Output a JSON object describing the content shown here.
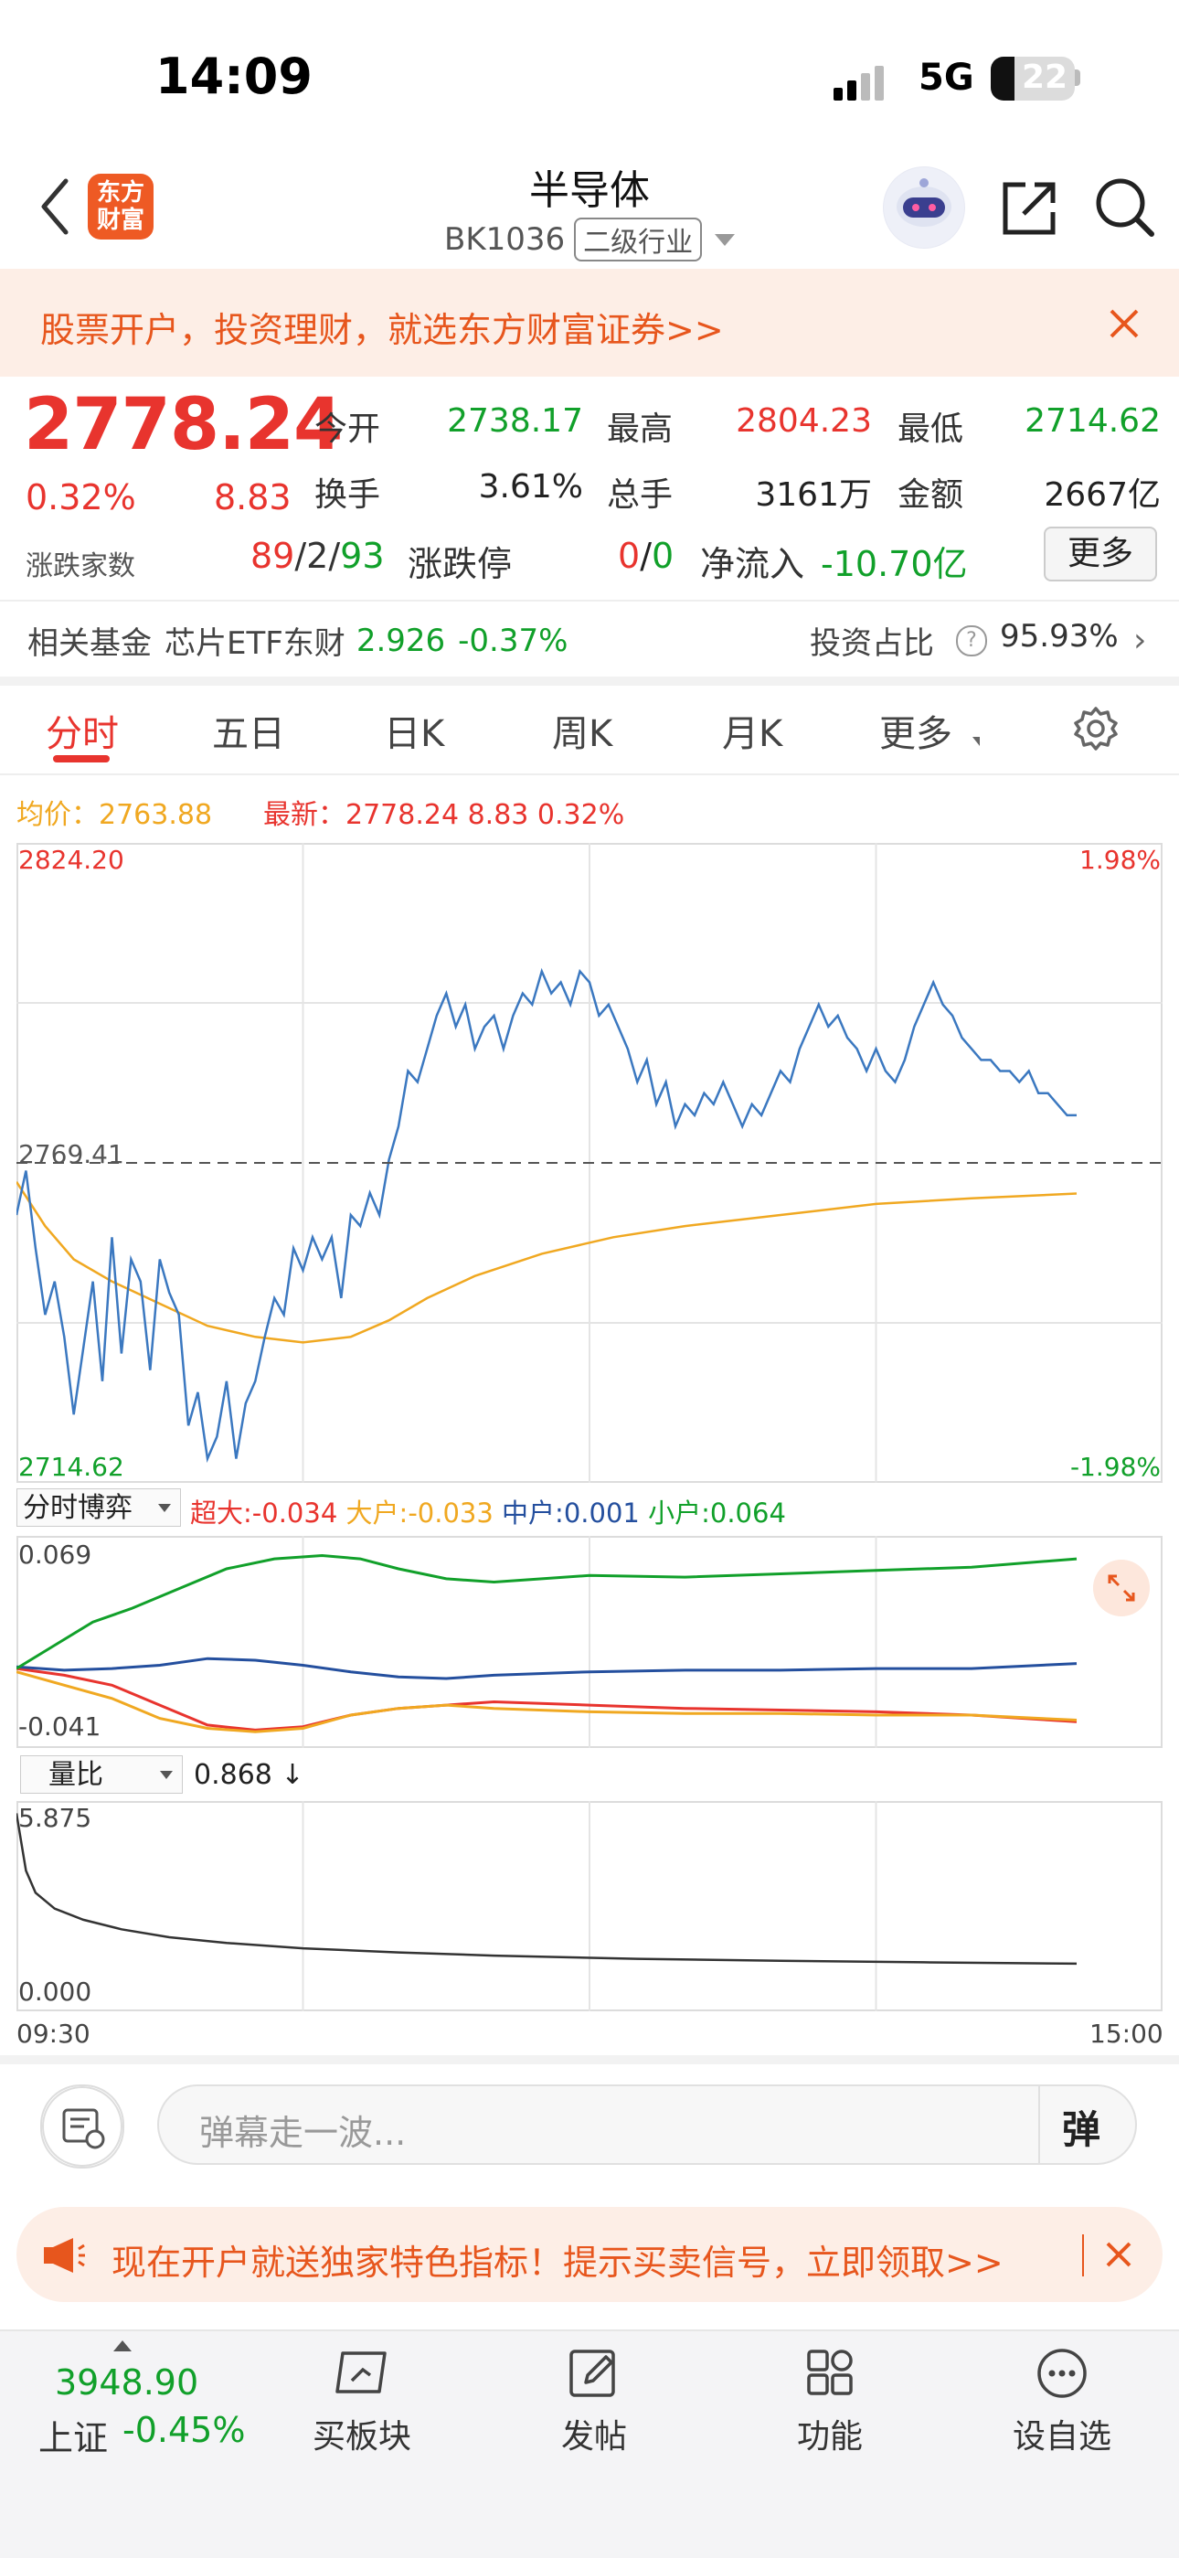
{
  "status": {
    "time": "14:09",
    "network": "5G",
    "battery": "22"
  },
  "header": {
    "logo_text": "东方财富",
    "title": "半导体",
    "code": "BK1036",
    "tag": "二级行业"
  },
  "promo": {
    "text": "股票开户，投资理财，就选东方财富证券>>"
  },
  "quote": {
    "price": "2778.24",
    "change_pct": "0.32%",
    "change_val": "8.83",
    "open_label": "今开",
    "open": "2738.17",
    "high_label": "最高",
    "high": "2804.23",
    "low_label": "最低",
    "low": "2714.62",
    "turnover_label": "换手",
    "turnover": "3.61%",
    "volume_label": "总手",
    "volume": "3161万",
    "amount_label": "金额",
    "amount": "2667亿",
    "updown_label": "涨跌家数",
    "up_count": "89",
    "flat_count": "2",
    "down_count": "93",
    "limit_label": "涨跌停",
    "limit_up": "0",
    "limit_down": "0",
    "inflow_label": "净流入",
    "inflow": "-10.70亿",
    "more_label": "更多"
  },
  "fund": {
    "label": "相关基金",
    "name": "芯片ETF东财",
    "value": "2.926",
    "change": "-0.37%",
    "invest_label": "投资占比",
    "invest_value": "95.93%"
  },
  "tabs": [
    "分时",
    "五日",
    "日K",
    "周K",
    "月K",
    "更多"
  ],
  "chart_info": {
    "avg_label": "均价：2763.88",
    "latest_label": "最新：2778.24  8.83  0.32%"
  },
  "chart_data": [
    {
      "type": "line",
      "title": "",
      "series": [],
      "ylim": [
        2714.62,
        2824.2
      ],
      "y_tick_labels": [
        "2824.20",
        "2769.41",
        "2714.62"
      ],
      "y_right_labels": [
        "1.98%",
        "-1.98%"
      ],
      "reference_line": 2769.41,
      "x_range": [
        "09:30",
        "15:00"
      ],
      "price_points": [
        [
          0,
          2760
        ],
        [
          2,
          2768
        ],
        [
          4,
          2754
        ],
        [
          6,
          2742
        ],
        [
          8,
          2748
        ],
        [
          10,
          2738
        ],
        [
          12,
          2724
        ],
        [
          14,
          2736
        ],
        [
          16,
          2748
        ],
        [
          18,
          2730
        ],
        [
          20,
          2756
        ],
        [
          22,
          2735
        ],
        [
          24,
          2752
        ],
        [
          26,
          2748
        ],
        [
          28,
          2732
        ],
        [
          30,
          2752
        ],
        [
          32,
          2746
        ],
        [
          34,
          2742
        ],
        [
          36,
          2722
        ],
        [
          38,
          2728
        ],
        [
          40,
          2716
        ],
        [
          42,
          2720
        ],
        [
          44,
          2730
        ],
        [
          46,
          2716
        ],
        [
          48,
          2726
        ],
        [
          50,
          2730
        ],
        [
          52,
          2738
        ],
        [
          54,
          2745
        ],
        [
          56,
          2742
        ],
        [
          58,
          2754
        ],
        [
          60,
          2750
        ],
        [
          62,
          2756
        ],
        [
          64,
          2752
        ],
        [
          66,
          2756
        ],
        [
          68,
          2745
        ],
        [
          70,
          2760
        ],
        [
          72,
          2758
        ],
        [
          74,
          2764
        ],
        [
          76,
          2760
        ],
        [
          78,
          2770
        ],
        [
          80,
          2776
        ],
        [
          82,
          2786
        ],
        [
          84,
          2784
        ],
        [
          86,
          2790
        ],
        [
          88,
          2796
        ],
        [
          90,
          2800
        ],
        [
          92,
          2794
        ],
        [
          94,
          2798
        ],
        [
          96,
          2790
        ],
        [
          98,
          2794
        ],
        [
          100,
          2796
        ],
        [
          102,
          2790
        ],
        [
          104,
          2796
        ],
        [
          106,
          2800
        ],
        [
          108,
          2798
        ],
        [
          110,
          2804
        ],
        [
          112,
          2800
        ],
        [
          114,
          2802
        ],
        [
          116,
          2798
        ],
        [
          118,
          2804
        ],
        [
          120,
          2802
        ],
        [
          122,
          2796
        ],
        [
          124,
          2798
        ],
        [
          126,
          2794
        ],
        [
          128,
          2790
        ],
        [
          130,
          2784
        ],
        [
          132,
          2788
        ],
        [
          134,
          2780
        ],
        [
          136,
          2784
        ],
        [
          138,
          2776
        ],
        [
          140,
          2780
        ],
        [
          142,
          2778
        ],
        [
          144,
          2782
        ],
        [
          146,
          2780
        ],
        [
          148,
          2784
        ],
        [
          150,
          2780
        ],
        [
          152,
          2776
        ],
        [
          154,
          2780
        ],
        [
          156,
          2778
        ],
        [
          158,
          2782
        ],
        [
          160,
          2786
        ],
        [
          162,
          2784
        ],
        [
          164,
          2790
        ],
        [
          166,
          2794
        ],
        [
          168,
          2798
        ],
        [
          170,
          2794
        ],
        [
          172,
          2796
        ],
        [
          174,
          2792
        ],
        [
          176,
          2790
        ],
        [
          178,
          2786
        ],
        [
          180,
          2790
        ],
        [
          182,
          2786
        ],
        [
          184,
          2784
        ],
        [
          186,
          2788
        ],
        [
          188,
          2794
        ],
        [
          190,
          2798
        ],
        [
          192,
          2802
        ],
        [
          194,
          2798
        ],
        [
          196,
          2796
        ],
        [
          198,
          2792
        ],
        [
          200,
          2790
        ],
        [
          202,
          2788
        ],
        [
          204,
          2788
        ],
        [
          206,
          2786
        ],
        [
          208,
          2786
        ],
        [
          210,
          2784
        ],
        [
          212,
          2786
        ],
        [
          214,
          2782
        ],
        [
          216,
          2782
        ],
        [
          218,
          2780
        ],
        [
          220,
          2778
        ],
        [
          222,
          2778
        ]
      ],
      "avg_points": [
        [
          0,
          2766
        ],
        [
          6,
          2758
        ],
        [
          12,
          2752
        ],
        [
          20,
          2748
        ],
        [
          30,
          2744
        ],
        [
          40,
          2740
        ],
        [
          50,
          2738
        ],
        [
          60,
          2737
        ],
        [
          70,
          2738
        ],
        [
          78,
          2741
        ],
        [
          86,
          2745
        ],
        [
          96,
          2749
        ],
        [
          110,
          2753
        ],
        [
          125,
          2756
        ],
        [
          140,
          2758
        ],
        [
          160,
          2760
        ],
        [
          180,
          2762
        ],
        [
          200,
          2763
        ],
        [
          222,
          2763.88
        ]
      ],
      "x_max_minutes": 240
    },
    {
      "type": "line",
      "title": "分时博弈",
      "series": [
        {
          "name": "超大",
          "latest": "-0.034",
          "color": "#e8342e",
          "points": [
            [
              0,
              -0.002
            ],
            [
              10,
              -0.006
            ],
            [
              20,
              -0.012
            ],
            [
              30,
              -0.024
            ],
            [
              40,
              -0.036
            ],
            [
              50,
              -0.039
            ],
            [
              60,
              -0.037
            ],
            [
              70,
              -0.03
            ],
            [
              80,
              -0.026
            ],
            [
              90,
              -0.024
            ],
            [
              100,
              -0.022
            ],
            [
              120,
              -0.024
            ],
            [
              140,
              -0.026
            ],
            [
              160,
              -0.027
            ],
            [
              180,
              -0.028
            ],
            [
              200,
              -0.03
            ],
            [
              222,
              -0.034
            ]
          ]
        },
        {
          "name": "大户",
          "latest": "-0.033",
          "color": "#f0a821",
          "points": [
            [
              0,
              -0.004
            ],
            [
              10,
              -0.012
            ],
            [
              20,
              -0.02
            ],
            [
              30,
              -0.032
            ],
            [
              40,
              -0.038
            ],
            [
              50,
              -0.04
            ],
            [
              60,
              -0.038
            ],
            [
              70,
              -0.03
            ],
            [
              80,
              -0.026
            ],
            [
              90,
              -0.024
            ],
            [
              100,
              -0.026
            ],
            [
              120,
              -0.028
            ],
            [
              140,
              -0.029
            ],
            [
              160,
              -0.029
            ],
            [
              180,
              -0.03
            ],
            [
              200,
              -0.03
            ],
            [
              222,
              -0.033
            ]
          ]
        },
        {
          "name": "中户",
          "latest": "0.001",
          "color": "#244f9e",
          "points": [
            [
              0,
              -0.001
            ],
            [
              10,
              -0.003
            ],
            [
              20,
              -0.002
            ],
            [
              30,
              0.0
            ],
            [
              40,
              0.004
            ],
            [
              50,
              0.003
            ],
            [
              60,
              0.0
            ],
            [
              70,
              -0.004
            ],
            [
              80,
              -0.007
            ],
            [
              90,
              -0.008
            ],
            [
              100,
              -0.006
            ],
            [
              120,
              -0.004
            ],
            [
              140,
              -0.003
            ],
            [
              160,
              -0.003
            ],
            [
              180,
              -0.002
            ],
            [
              200,
              -0.002
            ],
            [
              222,
              0.001
            ]
          ]
        },
        {
          "name": "小户",
          "latest": "0.064",
          "color": "#11a02a",
          "points": [
            [
              0,
              -0.002
            ],
            [
              8,
              0.012
            ],
            [
              16,
              0.026
            ],
            [
              24,
              0.034
            ],
            [
              34,
              0.046
            ],
            [
              44,
              0.058
            ],
            [
              54,
              0.064
            ],
            [
              64,
              0.066
            ],
            [
              72,
              0.064
            ],
            [
              80,
              0.058
            ],
            [
              90,
              0.052
            ],
            [
              100,
              0.05
            ],
            [
              110,
              0.052
            ],
            [
              120,
              0.054
            ],
            [
              140,
              0.053
            ],
            [
              160,
              0.055
            ],
            [
              180,
              0.057
            ],
            [
              200,
              0.059
            ],
            [
              222,
              0.064
            ]
          ]
        }
      ],
      "ylim": [
        -0.041,
        0.069
      ],
      "y_tick_labels": [
        "0.069",
        "-0.041"
      ],
      "x_max_minutes": 240
    },
    {
      "type": "line",
      "title": "量比",
      "latest": "0.868 ↓",
      "series": [],
      "ylim": [
        0.0,
        5.875
      ],
      "y_tick_labels": [
        "5.875",
        "0.000"
      ],
      "points": [
        [
          0,
          5.6
        ],
        [
          2,
          3.8
        ],
        [
          4,
          3.1
        ],
        [
          8,
          2.6
        ],
        [
          14,
          2.25
        ],
        [
          22,
          1.95
        ],
        [
          32,
          1.7
        ],
        [
          44,
          1.52
        ],
        [
          60,
          1.35
        ],
        [
          80,
          1.22
        ],
        [
          100,
          1.12
        ],
        [
          130,
          1.02
        ],
        [
          160,
          0.96
        ],
        [
          190,
          0.91
        ],
        [
          222,
          0.868
        ]
      ],
      "x_max_minutes": 240,
      "x_tick_labels": [
        "09:30",
        "15:00"
      ]
    }
  ],
  "sub_chart_select": "分时博弈",
  "vol_select": "量比",
  "vol_value": "0.868 ↓",
  "comment": {
    "placeholder": "弹幕走一波...",
    "send_label": "弹"
  },
  "ad": {
    "text": "现在开户就送独家特色指标！提示买卖信号，立即领取>>"
  },
  "bottom_nav": {
    "index_value": "3948.90",
    "index_name": "上证",
    "index_change": "-0.45%",
    "items": [
      "买板块",
      "发帖",
      "功能",
      "设自选"
    ]
  },
  "colors": {
    "up": "#e8342e",
    "down": "#11a02a",
    "accent": "#e7561d",
    "price_line": "#3b78c0",
    "avg_line": "#f0a821"
  }
}
